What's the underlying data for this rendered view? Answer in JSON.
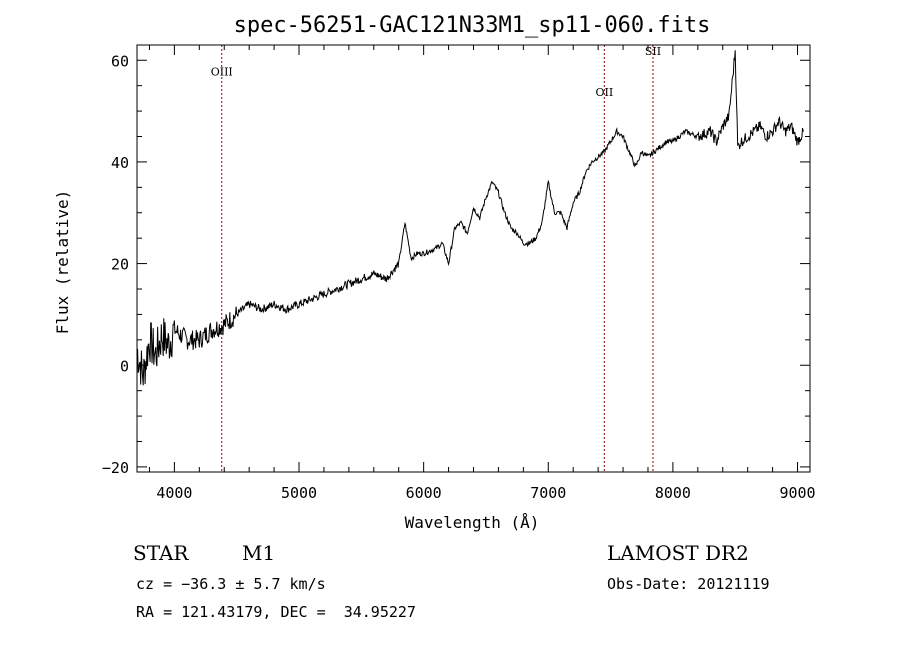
{
  "chart_data": {
    "type": "line",
    "title": "spec-56251-GAC121N33M1_sp11-060.fits",
    "xlabel": "Wavelength (Å)",
    "ylabel": "Flux (relative)",
    "xlim": [
      3700,
      9100
    ],
    "ylim": [
      -21,
      63
    ],
    "xticks": [
      4000,
      5000,
      6000,
      7000,
      8000,
      9000
    ],
    "xtick_labels": [
      "4000",
      "5000",
      "6000",
      "7000",
      "8000",
      "9000"
    ],
    "yticks": [
      -20,
      0,
      20,
      40,
      60
    ],
    "ytick_labels": [
      "−20",
      "0",
      "20",
      "40",
      "60"
    ],
    "grid": false,
    "series": [
      {
        "x": [
          3700,
          3750,
          3800,
          3850,
          3900,
          3950,
          4000,
          4100,
          4200,
          4300,
          4400,
          4500,
          4600,
          4700,
          4800,
          4900,
          5000,
          5100,
          5200,
          5300,
          5400,
          5500,
          5600,
          5700,
          5800,
          5850,
          5900,
          5950,
          6000,
          6100,
          6150,
          6200,
          6250,
          6300,
          6350,
          6400,
          6450,
          6500,
          6550,
          6600,
          6650,
          6700,
          6750,
          6800,
          6850,
          6900,
          6950,
          7000,
          7050,
          7100,
          7150,
          7200,
          7250,
          7300,
          7350,
          7400,
          7450,
          7500,
          7550,
          7600,
          7650,
          7700,
          7750,
          7800,
          7850,
          7900,
          7950,
          8000,
          8100,
          8200,
          8300,
          8350,
          8400,
          8450,
          8500,
          8520,
          8550,
          8600,
          8650,
          8700,
          8750,
          8800,
          8850,
          8900,
          8950,
          9000,
          9050
        ],
        "y": [
          3,
          -2,
          5,
          2,
          6,
          4,
          7,
          5,
          5,
          7,
          8,
          10,
          12,
          11,
          12,
          11,
          12,
          13,
          14,
          15,
          16,
          17,
          18,
          17,
          20,
          28,
          21,
          22,
          22,
          23,
          24,
          20,
          27,
          28,
          26,
          31,
          29,
          33,
          36,
          34,
          30,
          27,
          26,
          24,
          24,
          25,
          28,
          36,
          30,
          30,
          27,
          32,
          34,
          38,
          40,
          41,
          42,
          44,
          46,
          45,
          42,
          39,
          42,
          41,
          42,
          43,
          44,
          44,
          46,
          45,
          46,
          44,
          47,
          49,
          62,
          43,
          44,
          45,
          46,
          47,
          45,
          46,
          48,
          46,
          47,
          44,
          46
        ]
      }
    ],
    "emission_lines": [
      {
        "label": "OIII",
        "x": 4380,
        "label_y": 57
      },
      {
        "label": "OII",
        "x": 7450,
        "label_y": 53
      },
      {
        "label": "SII",
        "x": 7840,
        "label_y": 61
      }
    ]
  },
  "info": {
    "object_class": "STAR",
    "subclass": "M1",
    "survey": "LAMOST DR2",
    "redshift_text": "cz = −36.3 ± 5.7 km/s",
    "obs_date_text": "Obs-Date: 20121119",
    "coords_text": "RA = 121.43179, DEC =  34.95227"
  }
}
